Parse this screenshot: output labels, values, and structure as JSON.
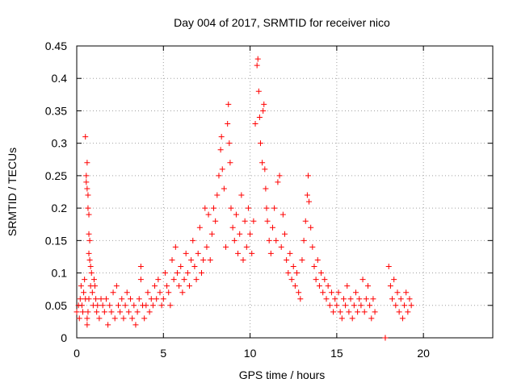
{
  "chart_data": {
    "type": "scatter",
    "title": "Day 004 of 2017, SRMTID for receiver nico",
    "xlabel": "GPS time / hours",
    "ylabel": "SRMTID / TECUs",
    "xlim": [
      0,
      24
    ],
    "ylim": [
      0,
      0.45
    ],
    "xticks": [
      0,
      5,
      10,
      15,
      20
    ],
    "xtick_labels": [
      "0",
      "5",
      "10",
      "15",
      "20"
    ],
    "yticks": [
      0,
      0.05,
      0.1,
      0.15,
      0.2,
      0.25,
      0.3,
      0.35,
      0.4,
      0.45
    ],
    "ytick_labels": [
      "0",
      "0.05",
      "0.1",
      "0.15",
      "0.2",
      "0.25",
      "0.3",
      "0.35",
      "0.4",
      "0.45"
    ],
    "grid": true,
    "marker": "plus",
    "color": "#ff0000",
    "series": [
      {
        "points": [
          [
            0.0,
            0.04
          ],
          [
            0.1,
            0.05
          ],
          [
            0.15,
            0.03
          ],
          [
            0.2,
            0.06
          ],
          [
            0.25,
            0.08
          ],
          [
            0.3,
            0.05
          ],
          [
            0.35,
            0.04
          ],
          [
            0.4,
            0.07
          ],
          [
            0.45,
            0.09
          ],
          [
            0.5,
            0.06
          ],
          [
            0.5,
            0.31
          ],
          [
            0.55,
            0.25
          ],
          [
            0.55,
            0.24
          ],
          [
            0.6,
            0.27
          ],
          [
            0.6,
            0.23
          ],
          [
            0.65,
            0.22
          ],
          [
            0.65,
            0.2
          ],
          [
            0.7,
            0.19
          ],
          [
            0.7,
            0.16
          ],
          [
            0.75,
            0.15
          ],
          [
            0.7,
            0.13
          ],
          [
            0.75,
            0.12
          ],
          [
            0.8,
            0.11
          ],
          [
            0.6,
            0.03
          ],
          [
            0.6,
            0.02
          ],
          [
            0.65,
            0.04
          ],
          [
            0.7,
            0.06
          ],
          [
            0.8,
            0.08
          ],
          [
            0.85,
            0.1
          ],
          [
            0.9,
            0.07
          ],
          [
            0.95,
            0.05
          ],
          [
            1.0,
            0.09
          ],
          [
            1.05,
            0.08
          ],
          [
            1.1,
            0.06
          ],
          [
            1.15,
            0.04
          ],
          [
            1.2,
            0.05
          ],
          [
            1.3,
            0.03
          ],
          [
            1.4,
            0.06
          ],
          [
            1.5,
            0.05
          ],
          [
            1.6,
            0.04
          ],
          [
            1.7,
            0.06
          ],
          [
            1.8,
            0.02
          ],
          [
            1.9,
            0.05
          ],
          [
            2.0,
            0.04
          ],
          [
            2.1,
            0.07
          ],
          [
            2.2,
            0.03
          ],
          [
            2.3,
            0.08
          ],
          [
            2.4,
            0.05
          ],
          [
            2.5,
            0.04
          ],
          [
            2.6,
            0.06
          ],
          [
            2.7,
            0.03
          ],
          [
            2.8,
            0.05
          ],
          [
            2.9,
            0.07
          ],
          [
            3.0,
            0.04
          ],
          [
            3.1,
            0.06
          ],
          [
            3.2,
            0.03
          ],
          [
            3.3,
            0.05
          ],
          [
            3.4,
            0.02
          ],
          [
            3.5,
            0.04
          ],
          [
            3.6,
            0.06
          ],
          [
            3.7,
            0.09
          ],
          [
            3.7,
            0.11
          ],
          [
            3.8,
            0.05
          ],
          [
            3.9,
            0.03
          ],
          [
            4.0,
            0.05
          ],
          [
            4.1,
            0.07
          ],
          [
            4.2,
            0.04
          ],
          [
            4.3,
            0.06
          ],
          [
            4.4,
            0.05
          ],
          [
            4.5,
            0.08
          ],
          [
            4.6,
            0.06
          ],
          [
            4.7,
            0.09
          ],
          [
            4.8,
            0.07
          ],
          [
            4.9,
            0.05
          ],
          [
            5.0,
            0.06
          ],
          [
            5.1,
            0.1
          ],
          [
            5.2,
            0.08
          ],
          [
            5.3,
            0.07
          ],
          [
            5.4,
            0.05
          ],
          [
            5.5,
            0.12
          ],
          [
            5.6,
            0.09
          ],
          [
            5.7,
            0.14
          ],
          [
            5.8,
            0.1
          ],
          [
            5.9,
            0.08
          ],
          [
            6.0,
            0.11
          ],
          [
            6.1,
            0.07
          ],
          [
            6.2,
            0.09
          ],
          [
            6.3,
            0.13
          ],
          [
            6.4,
            0.1
          ],
          [
            6.5,
            0.08
          ],
          [
            6.6,
            0.12
          ],
          [
            6.7,
            0.15
          ],
          [
            6.8,
            0.11
          ],
          [
            6.9,
            0.09
          ],
          [
            7.0,
            0.13
          ],
          [
            7.1,
            0.17
          ],
          [
            7.2,
            0.1
          ],
          [
            7.3,
            0.12
          ],
          [
            7.4,
            0.2
          ],
          [
            7.5,
            0.14
          ],
          [
            7.6,
            0.19
          ],
          [
            7.7,
            0.12
          ],
          [
            7.8,
            0.16
          ],
          [
            7.9,
            0.2
          ],
          [
            8.0,
            0.18
          ],
          [
            8.1,
            0.22
          ],
          [
            8.2,
            0.25
          ],
          [
            8.3,
            0.29
          ],
          [
            8.35,
            0.31
          ],
          [
            8.4,
            0.26
          ],
          [
            8.5,
            0.23
          ],
          [
            8.6,
            0.14
          ],
          [
            8.7,
            0.33
          ],
          [
            8.75,
            0.36
          ],
          [
            8.8,
            0.3
          ],
          [
            8.85,
            0.27
          ],
          [
            8.9,
            0.2
          ],
          [
            9.0,
            0.17
          ],
          [
            9.1,
            0.15
          ],
          [
            9.2,
            0.19
          ],
          [
            9.3,
            0.13
          ],
          [
            9.4,
            0.16
          ],
          [
            9.5,
            0.22
          ],
          [
            9.6,
            0.12
          ],
          [
            9.7,
            0.18
          ],
          [
            9.8,
            0.14
          ],
          [
            9.9,
            0.2
          ],
          [
            10.0,
            0.16
          ],
          [
            10.1,
            0.13
          ],
          [
            10.2,
            0.18
          ],
          [
            10.3,
            0.33
          ],
          [
            10.4,
            0.42
          ],
          [
            10.45,
            0.43
          ],
          [
            10.5,
            0.38
          ],
          [
            10.55,
            0.34
          ],
          [
            10.6,
            0.3
          ],
          [
            10.7,
            0.27
          ],
          [
            10.75,
            0.35
          ],
          [
            10.8,
            0.36
          ],
          [
            10.85,
            0.26
          ],
          [
            10.9,
            0.23
          ],
          [
            10.95,
            0.2
          ],
          [
            11.0,
            0.18
          ],
          [
            11.1,
            0.15
          ],
          [
            11.2,
            0.13
          ],
          [
            11.3,
            0.17
          ],
          [
            11.4,
            0.2
          ],
          [
            11.5,
            0.15
          ],
          [
            11.6,
            0.24
          ],
          [
            11.7,
            0.25
          ],
          [
            11.8,
            0.14
          ],
          [
            11.9,
            0.19
          ],
          [
            12.0,
            0.16
          ],
          [
            12.1,
            0.12
          ],
          [
            12.2,
            0.1
          ],
          [
            12.3,
            0.13
          ],
          [
            12.4,
            0.09
          ],
          [
            12.5,
            0.11
          ],
          [
            12.6,
            0.08
          ],
          [
            12.7,
            0.1
          ],
          [
            12.8,
            0.07
          ],
          [
            12.9,
            0.06
          ],
          [
            13.0,
            0.12
          ],
          [
            13.1,
            0.15
          ],
          [
            13.2,
            0.18
          ],
          [
            13.3,
            0.22
          ],
          [
            13.35,
            0.25
          ],
          [
            13.4,
            0.21
          ],
          [
            13.5,
            0.17
          ],
          [
            13.6,
            0.14
          ],
          [
            13.7,
            0.11
          ],
          [
            13.8,
            0.09
          ],
          [
            13.9,
            0.12
          ],
          [
            14.0,
            0.08
          ],
          [
            14.1,
            0.1
          ],
          [
            14.2,
            0.07
          ],
          [
            14.3,
            0.09
          ],
          [
            14.4,
            0.06
          ],
          [
            14.5,
            0.08
          ],
          [
            14.6,
            0.05
          ],
          [
            14.7,
            0.07
          ],
          [
            14.8,
            0.04
          ],
          [
            14.9,
            0.06
          ],
          [
            15.0,
            0.05
          ],
          [
            15.1,
            0.07
          ],
          [
            15.2,
            0.04
          ],
          [
            15.3,
            0.03
          ],
          [
            15.4,
            0.06
          ],
          [
            15.5,
            0.05
          ],
          [
            15.6,
            0.08
          ],
          [
            15.7,
            0.04
          ],
          [
            15.8,
            0.06
          ],
          [
            15.9,
            0.03
          ],
          [
            16.0,
            0.05
          ],
          [
            16.1,
            0.07
          ],
          [
            16.2,
            0.04
          ],
          [
            16.3,
            0.06
          ],
          [
            16.4,
            0.05
          ],
          [
            16.5,
            0.09
          ],
          [
            16.6,
            0.04
          ],
          [
            16.7,
            0.06
          ],
          [
            16.8,
            0.08
          ],
          [
            16.9,
            0.05
          ],
          [
            17.0,
            0.03
          ],
          [
            17.1,
            0.06
          ],
          [
            17.2,
            0.04
          ],
          [
            17.8,
            0.0
          ],
          [
            17.8,
            0.0
          ],
          [
            18.0,
            0.11
          ],
          [
            18.1,
            0.08
          ],
          [
            18.2,
            0.06
          ],
          [
            18.3,
            0.09
          ],
          [
            18.4,
            0.05
          ],
          [
            18.5,
            0.07
          ],
          [
            18.6,
            0.04
          ],
          [
            18.7,
            0.06
          ],
          [
            18.8,
            0.03
          ],
          [
            18.9,
            0.05
          ],
          [
            19.0,
            0.07
          ],
          [
            19.1,
            0.04
          ],
          [
            19.2,
            0.06
          ],
          [
            19.3,
            0.05
          ]
        ]
      }
    ]
  }
}
